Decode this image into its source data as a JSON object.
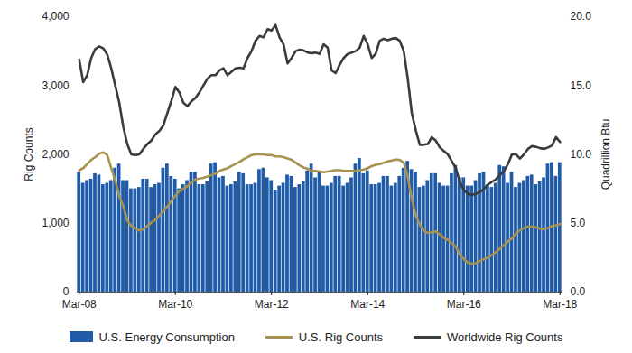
{
  "chart_data": {
    "type": "bar",
    "ylabel": "Rig Counts",
    "y2label": "Quadrillion Btu",
    "legend": "bottom",
    "grid": false,
    "categories": [
      "Mar-08",
      null,
      null,
      null,
      null,
      null,
      null,
      null,
      null,
      null,
      null,
      null,
      null,
      null,
      null,
      null,
      null,
      null,
      null,
      null,
      null,
      null,
      null,
      null,
      "Mar-10",
      null,
      null,
      null,
      null,
      null,
      null,
      null,
      null,
      null,
      null,
      null,
      null,
      null,
      null,
      null,
      null,
      null,
      null,
      null,
      null,
      null,
      null,
      null,
      "Mar-12",
      null,
      null,
      null,
      null,
      null,
      null,
      null,
      null,
      null,
      null,
      null,
      null,
      null,
      null,
      null,
      null,
      null,
      null,
      null,
      null,
      null,
      null,
      null,
      "Mar-14",
      null,
      null,
      null,
      null,
      null,
      null,
      null,
      null,
      null,
      null,
      null,
      null,
      null,
      null,
      null,
      null,
      null,
      null,
      null,
      null,
      null,
      null,
      null,
      "Mar-16",
      null,
      null,
      null,
      null,
      null,
      null,
      null,
      null,
      null,
      null,
      null,
      null,
      null,
      null,
      null,
      null,
      null,
      null,
      null,
      null,
      null,
      null,
      null,
      "Mar-18"
    ],
    "ylim": [
      0,
      4000
    ],
    "yticks": [
      0,
      {
        "value": 1000,
        "label": "1,000"
      },
      {
        "value": 2000,
        "label": "2,000"
      },
      {
        "value": 3000,
        "label": "3,000"
      },
      {
        "value": 4000,
        "label": "4,000"
      }
    ],
    "y2lim": [
      0,
      20
    ],
    "y2ticks": [
      {
        "value": 0,
        "label": "0.0"
      },
      {
        "value": 5,
        "label": "5.0"
      },
      {
        "value": 10,
        "label": "10.0"
      },
      {
        "value": 15,
        "label": "15.0"
      },
      {
        "value": 20,
        "label": "20.0"
      }
    ],
    "series": [
      {
        "name": "U.S. Energy Consumption",
        "type": "bar",
        "axis": "y2",
        "color": "#1f5ba6",
        "values": [
          8.7,
          7.9,
          8.1,
          8.2,
          8.6,
          8.5,
          7.8,
          7.9,
          8.1,
          9.0,
          9.3,
          8.1,
          8.1,
          7.5,
          7.5,
          7.6,
          8.2,
          8.2,
          7.6,
          7.8,
          7.9,
          9.0,
          9.3,
          8.4,
          8.2,
          7.5,
          7.8,
          8.1,
          8.7,
          8.7,
          7.8,
          7.8,
          8.0,
          9.3,
          9.4,
          8.3,
          8.4,
          7.7,
          7.8,
          8.0,
          8.7,
          8.6,
          7.8,
          7.8,
          7.9,
          8.9,
          9.0,
          8.3,
          8.1,
          7.4,
          7.7,
          7.9,
          8.5,
          8.4,
          7.6,
          7.8,
          8.0,
          8.8,
          9.3,
          8.3,
          8.7,
          7.7,
          7.7,
          7.9,
          8.4,
          8.4,
          7.7,
          7.9,
          8.3,
          9.3,
          9.7,
          8.6,
          8.8,
          7.8,
          7.8,
          7.9,
          8.4,
          8.4,
          7.7,
          7.9,
          8.4,
          9.0,
          9.5,
          8.9,
          8.7,
          7.6,
          7.7,
          8.1,
          8.6,
          8.6,
          7.9,
          7.7,
          7.7,
          8.6,
          9.2,
          8.3,
          8.3,
          7.7,
          7.7,
          8.1,
          8.6,
          8.7,
          7.8,
          7.6,
          7.9,
          9.2,
          9.1,
          7.9,
          8.7,
          7.6,
          7.9,
          8.1,
          8.4,
          8.5,
          7.8,
          8.0,
          8.3,
          9.3,
          9.4,
          8.4,
          9.4
        ]
      },
      {
        "name": "U.S. Rig Counts",
        "type": "line",
        "axis": "y",
        "color": "#a8924f",
        "values": [
          1770,
          1800,
          1860,
          1920,
          1960,
          2010,
          2030,
          1990,
          1800,
          1620,
          1390,
          1250,
          1040,
          960,
          920,
          895,
          910,
          960,
          1010,
          1050,
          1110,
          1180,
          1240,
          1320,
          1400,
          1470,
          1500,
          1540,
          1590,
          1640,
          1650,
          1660,
          1680,
          1700,
          1720,
          1760,
          1780,
          1800,
          1830,
          1860,
          1890,
          1930,
          1960,
          1990,
          2000,
          2000,
          2000,
          1990,
          1990,
          1970,
          1970,
          1960,
          1940,
          1920,
          1880,
          1840,
          1810,
          1790,
          1760,
          1760,
          1750,
          1740,
          1750,
          1760,
          1770,
          1770,
          1760,
          1760,
          1760,
          1760,
          1770,
          1780,
          1800,
          1830,
          1850,
          1860,
          1880,
          1900,
          1910,
          1925,
          1920,
          1880,
          1680,
          1350,
          1110,
          980,
          890,
          860,
          870,
          880,
          840,
          790,
          760,
          710,
          660,
          540,
          480,
          430,
          410,
          420,
          450,
          480,
          500,
          540,
          580,
          630,
          680,
          740,
          780,
          850,
          900,
          930,
          950,
          950,
          940,
          920,
          915,
          930,
          960,
          970,
          990
        ]
      },
      {
        "name": "Worldwide Rig Counts",
        "type": "line",
        "axis": "y",
        "color": "#3b3b3b",
        "values": [
          3380,
          3050,
          3150,
          3400,
          3530,
          3570,
          3540,
          3450,
          3250,
          3000,
          2750,
          2400,
          2150,
          2000,
          1990,
          2000,
          2080,
          2150,
          2200,
          2290,
          2340,
          2420,
          2600,
          2780,
          2980,
          2900,
          2750,
          2700,
          2770,
          2820,
          2900,
          3000,
          3100,
          3150,
          3150,
          3220,
          3250,
          3150,
          3200,
          3250,
          3260,
          3250,
          3400,
          3500,
          3650,
          3720,
          3700,
          3820,
          3800,
          3880,
          3700,
          3600,
          3320,
          3400,
          3500,
          3520,
          3510,
          3480,
          3470,
          3480,
          3460,
          3600,
          3550,
          3220,
          3180,
          3300,
          3400,
          3460,
          3480,
          3500,
          3550,
          3720,
          3600,
          3400,
          3460,
          3650,
          3680,
          3660,
          3680,
          3690,
          3650,
          3500,
          3100,
          2600,
          2350,
          2140,
          2140,
          2150,
          2250,
          2200,
          2100,
          2050,
          2000,
          1900,
          1800,
          1600,
          1480,
          1430,
          1410,
          1430,
          1450,
          1500,
          1560,
          1600,
          1640,
          1700,
          1760,
          1860,
          2000,
          2000,
          1940,
          2000,
          2080,
          2120,
          2110,
          2090,
          2080,
          2100,
          2130,
          2250,
          2180
        ]
      }
    ]
  }
}
